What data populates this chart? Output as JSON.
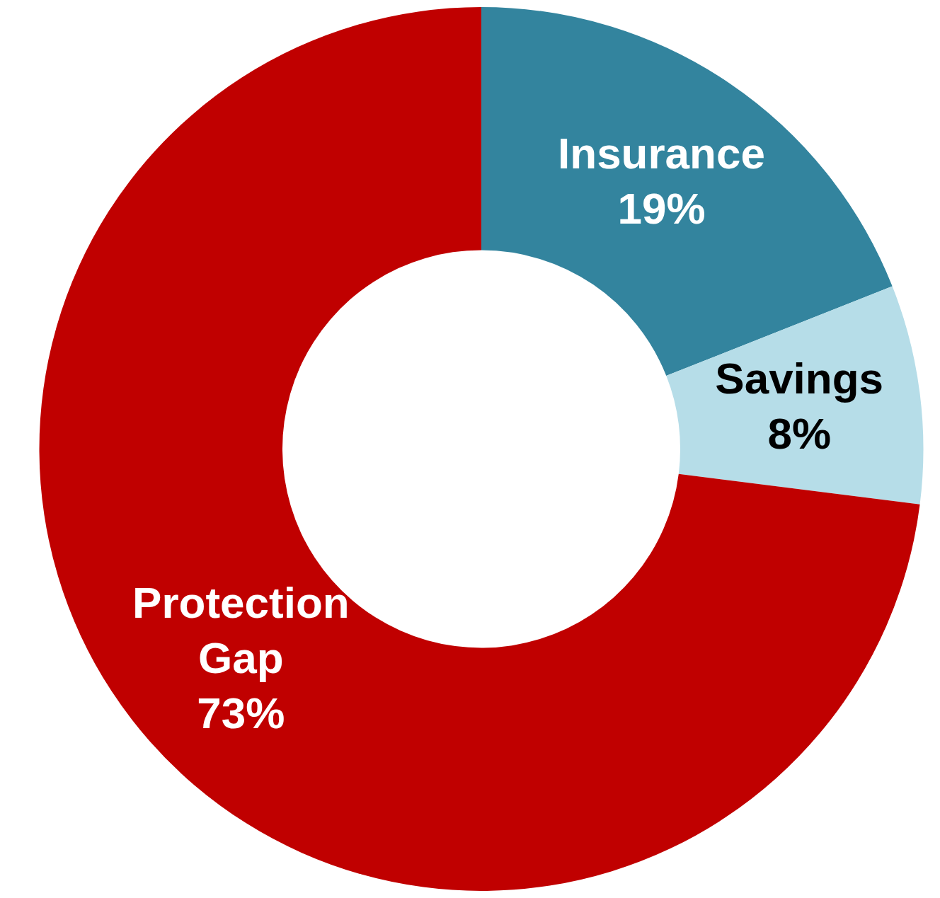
{
  "chart_data": {
    "type": "donut",
    "categories": [
      "Insurance",
      "Savings",
      "Protection Gap"
    ],
    "values": [
      19,
      8,
      73
    ],
    "value_labels": [
      "19%",
      "8%",
      "73%"
    ],
    "colors": [
      "#33849e",
      "#b6dde8",
      "#c00000"
    ],
    "legend": false
  }
}
